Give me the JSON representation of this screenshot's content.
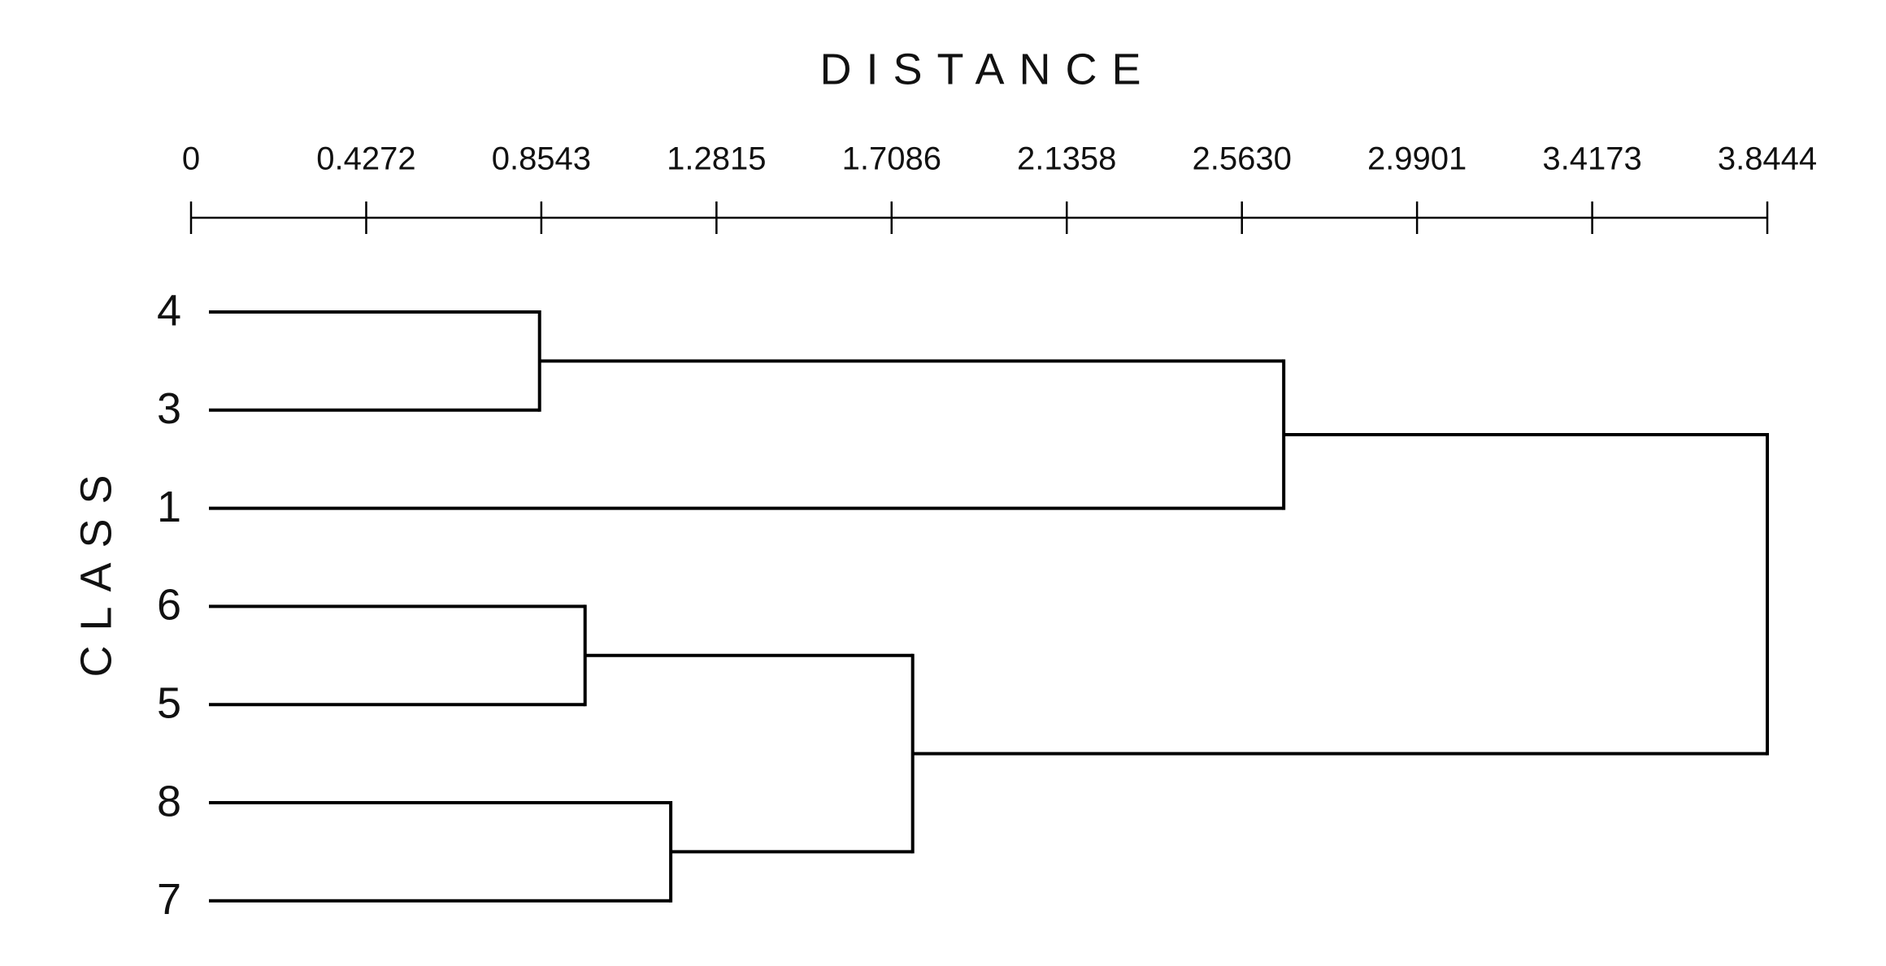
{
  "chart_data": {
    "type": "dendrogram",
    "title": "DISTANCE",
    "y_label": "CLASS",
    "leaves": [
      "4",
      "3",
      "1",
      "6",
      "5",
      "8",
      "7"
    ],
    "merges": [
      {
        "join": [
          0,
          1
        ],
        "distance": 0.85
      },
      {
        "join": [
          7,
          2
        ],
        "distance": 2.665
      },
      {
        "join": [
          3,
          4
        ],
        "distance": 0.961
      },
      {
        "join": [
          5,
          6
        ],
        "distance": 1.17
      },
      {
        "join": [
          9,
          10
        ],
        "distance": 1.76
      },
      {
        "join": [
          8,
          11
        ],
        "distance": 3.8444
      }
    ],
    "xlim": [
      0,
      3.8444
    ],
    "xticks": [
      0,
      0.4272,
      0.8543,
      1.2815,
      1.7086,
      2.1358,
      {
        "value": 2.563,
        "label": "2.5630"
      },
      2.9901,
      3.4173,
      3.8444
    ],
    "color": "#000000"
  }
}
